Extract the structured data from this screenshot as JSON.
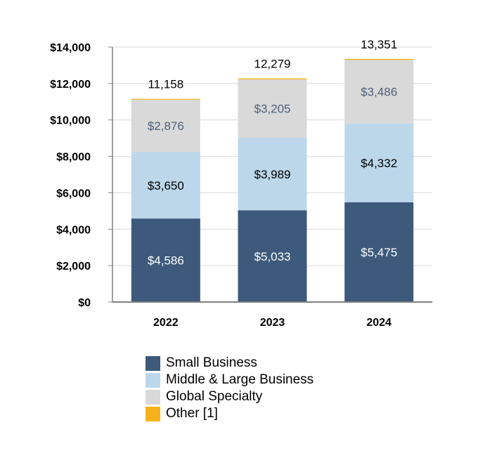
{
  "chart_data": {
    "type": "bar",
    "stacked": true,
    "categories": [
      "2022",
      "2023",
      "2024"
    ],
    "series": [
      {
        "name": "Small Business",
        "color": "#3d5a7c",
        "label_color": "#ffffff",
        "labels": [
          "$4,586",
          "$5,033",
          "$5,475"
        ],
        "values": [
          4586,
          5033,
          5475
        ]
      },
      {
        "name": "Middle & Large Business",
        "color": "#bcd7ea",
        "label_color": "#000000",
        "labels": [
          "$3,650",
          "$3,989",
          "$4,332"
        ],
        "values": [
          3650,
          3989,
          4332
        ]
      },
      {
        "name": "Global Specialty",
        "color": "#d9d9d9",
        "label_color": "#4d5f7a",
        "labels": [
          "$2,876",
          "$3,205",
          "$3,486"
        ],
        "values": [
          2876,
          3205,
          3486
        ]
      },
      {
        "name": "Other [1]",
        "color": "#f5b21b",
        "values": [
          46,
          52,
          58
        ]
      }
    ],
    "totals": [
      "11,158",
      "12,279",
      "13,351"
    ],
    "total_values": [
      11158,
      12279,
      13351
    ],
    "y_ticks": [
      "$0",
      "$2,000",
      "$4,000",
      "$6,000",
      "$8,000",
      "$10,000",
      "$12,000",
      "$14,000"
    ],
    "ylim": [
      0,
      14000
    ],
    "grid": true,
    "legend_position": "bottom",
    "title": "",
    "xlabel": "",
    "ylabel": ""
  }
}
